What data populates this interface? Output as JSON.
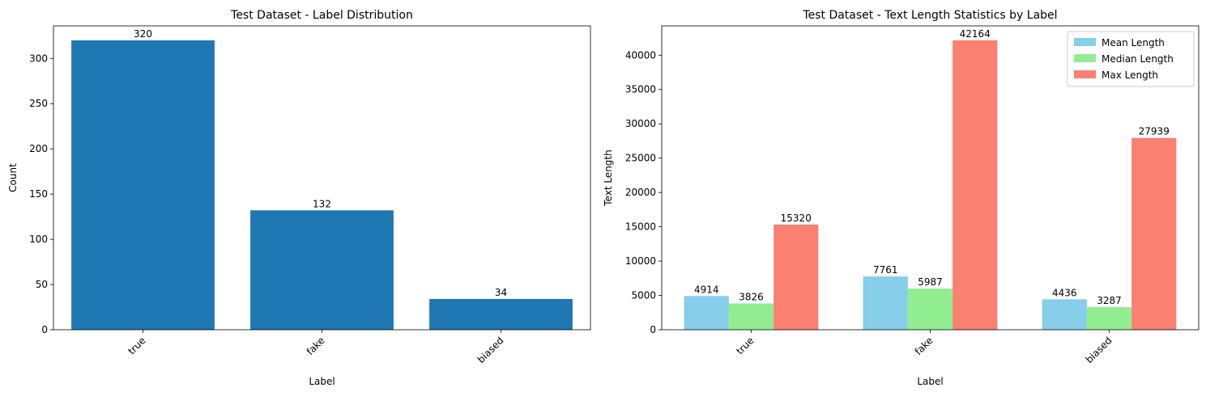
{
  "chart_data": [
    {
      "type": "bar",
      "title": "Test Dataset - Label Distribution",
      "xlabel": "Label",
      "ylabel": "Count",
      "categories": [
        "true",
        "fake",
        "biased"
      ],
      "values": [
        320,
        132,
        34
      ],
      "ylim": [
        0,
        336
      ],
      "yticks": [
        0,
        50,
        100,
        150,
        200,
        250,
        300
      ],
      "color": "#1f77b4",
      "grid": false,
      "legend": false
    },
    {
      "type": "bar",
      "title": "Test Dataset - Text Length Statistics by Label",
      "xlabel": "Label",
      "ylabel": "Text Length",
      "categories": [
        "true",
        "fake",
        "biased"
      ],
      "series": [
        {
          "name": "Mean Length",
          "values": [
            4914,
            7761,
            4436
          ],
          "color": "#87ceeb"
        },
        {
          "name": "Median Length",
          "values": [
            3826,
            5987,
            3287
          ],
          "color": "#90ee90"
        },
        {
          "name": "Max Length",
          "values": [
            15320,
            42164,
            27939
          ],
          "color": "#fa8072"
        }
      ],
      "ylim": [
        0,
        44272
      ],
      "yticks": [
        0,
        5000,
        10000,
        15000,
        20000,
        25000,
        30000,
        35000,
        40000
      ],
      "grid": false,
      "legend": "top-right"
    }
  ]
}
